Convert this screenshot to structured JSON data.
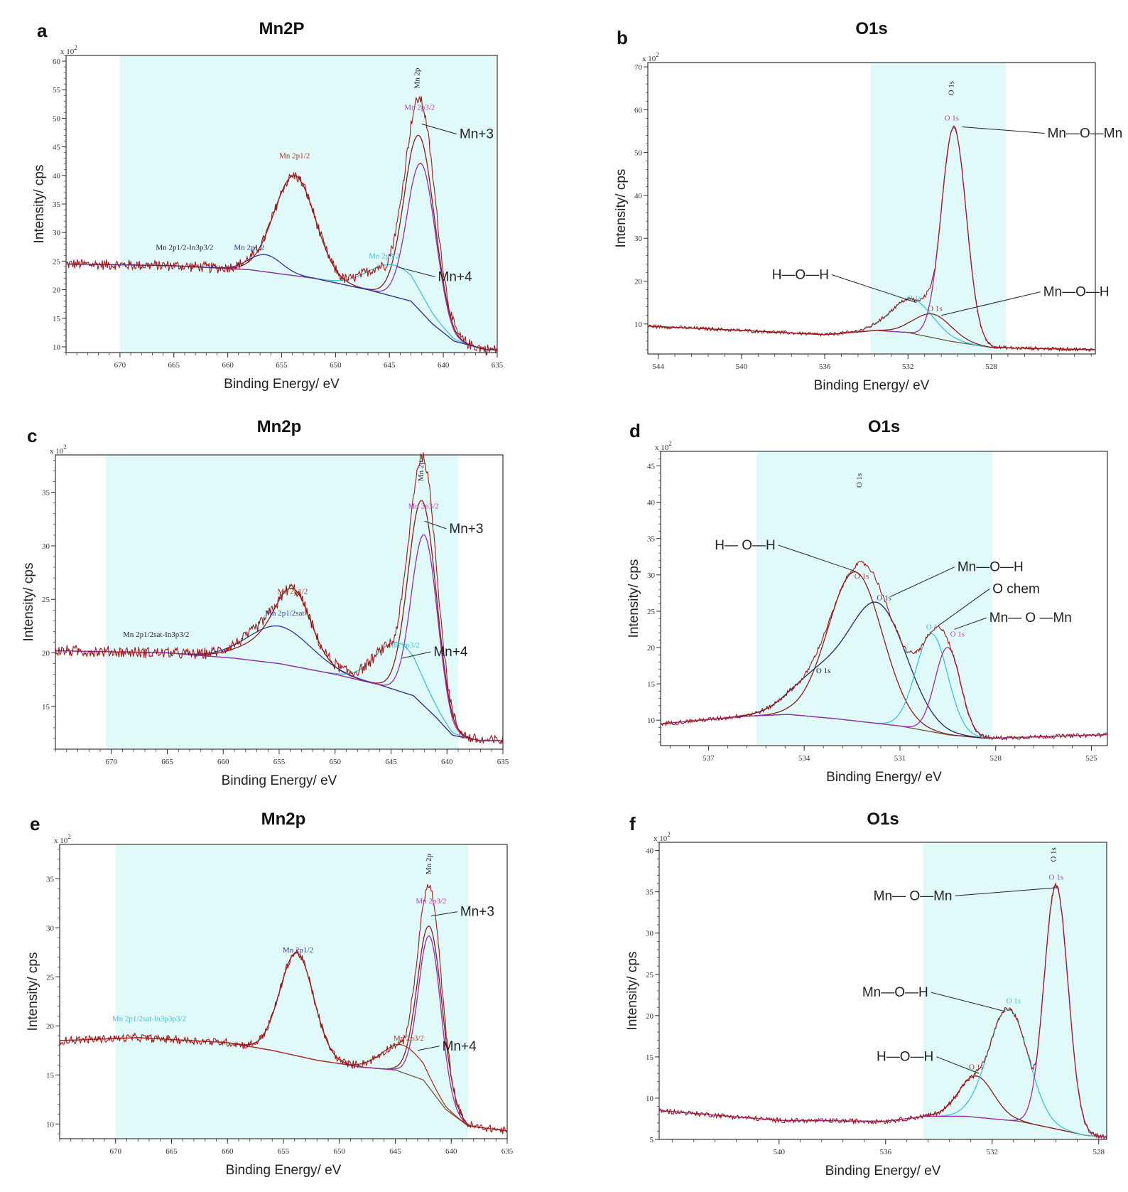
{
  "chart_data": [
    {
      "type": "line",
      "panel_letter": "a",
      "title": "Mn2P",
      "xlabel": "Binding Energy/ eV",
      "ylabel": "Intensity/ cps",
      "y_multiplier": "x 10",
      "y_multiplier_exp": "2",
      "xlim": [
        675,
        635
      ],
      "ylim": [
        9,
        61
      ],
      "xticks": [
        670,
        665,
        660,
        655,
        650,
        645,
        640,
        635
      ],
      "yticks": [
        10,
        15,
        20,
        25,
        30,
        35,
        40,
        45,
        50,
        55,
        60
      ],
      "xtick_labels": [
        "670",
        "665",
        "660",
        "655",
        "650",
        "645",
        "640",
        "635"
      ],
      "ytick_labels": [
        "10",
        "15",
        "20",
        "25",
        "30",
        "35",
        "40",
        "45",
        "50",
        "55",
        "60"
      ],
      "shaded_range": [
        670,
        635.2
      ],
      "background": [
        [
          675,
          24.5
        ],
        [
          665,
          24.2
        ],
        [
          658,
          23.5
        ],
        [
          652,
          22
        ],
        [
          647,
          20
        ],
        [
          643,
          18
        ],
        [
          641,
          14
        ],
        [
          639,
          11
        ],
        [
          636,
          9.5
        ],
        [
          635,
          9.5
        ]
      ],
      "components": [
        {
          "color": "#8b1a1a",
          "peaks": [
            [
              653.8,
              17.5,
              1.9
            ],
            [
              642.2,
              30.5,
              1.4
            ]
          ]
        },
        {
          "color": "#40c0d0",
          "peaks": [
            [
              644.5,
              5.5,
              2.4
            ]
          ]
        },
        {
          "color": "#9c27b0",
          "peaks": [
            [
              642.0,
              26,
              1.3
            ]
          ]
        },
        {
          "color": "#333399",
          "peaks": [
            [
              656.5,
              3,
              1.5
            ]
          ]
        }
      ],
      "noise": 0.8,
      "peak_labels": [
        {
          "text": "Mn 2p",
          "x": 642.2,
          "y": 57,
          "color": "#222222",
          "rotate": true
        },
        {
          "text": "Mn 2p3/2",
          "x": 642.2,
          "y": 51.5,
          "color": "#b040b0"
        },
        {
          "text": "Mn 2p1/2",
          "x": 653.8,
          "y": 43,
          "color": "#b03020"
        },
        {
          "text": "Mn 2p1/2-In3p3/2",
          "x": 664,
          "y": 27,
          "color": "#222222"
        },
        {
          "text": "Mn 2p1/2",
          "x": 658,
          "y": 27,
          "color": "#333399"
        },
        {
          "text": "Mn 2p3/2",
          "x": 645.5,
          "y": 25.5,
          "color": "#40c0d0"
        }
      ],
      "annotations": [
        {
          "text": "Mn+3",
          "tx": 638.5,
          "ty": 46.5,
          "lx": 642,
          "ly": 49
        },
        {
          "text": "Mn+4",
          "tx": 640.5,
          "ty": 21.5,
          "lx": 644.3,
          "ly": 24
        }
      ]
    },
    {
      "type": "line",
      "panel_letter": "b",
      "title": "O1s",
      "xlabel": "Binding Energy/ eV",
      "ylabel": "Intensity/ cps",
      "y_multiplier": "x 10",
      "y_multiplier_exp": "2",
      "xlim": [
        544.5,
        523
      ],
      "ylim": [
        3,
        71
      ],
      "xticks": [
        544,
        540,
        536,
        532,
        528
      ],
      "yticks": [
        10,
        20,
        30,
        40,
        50,
        60,
        70
      ],
      "xtick_labels": [
        "544",
        "540",
        "536",
        "532",
        "528"
      ],
      "ytick_labels": [
        "10",
        "20",
        "30",
        "40",
        "50",
        "60",
        "70"
      ],
      "shaded_range": [
        533.8,
        527.3
      ],
      "background": [
        [
          544.5,
          9.5
        ],
        [
          540,
          8.5
        ],
        [
          536,
          7.5
        ],
        [
          533.5,
          8.5
        ],
        [
          532,
          8
        ],
        [
          530,
          6
        ],
        [
          528,
          4.5
        ],
        [
          523,
          4
        ]
      ],
      "components": [
        {
          "color": "#9c27b0",
          "peaks": [
            [
              529.8,
              50,
              0.6
            ]
          ]
        },
        {
          "color": "#40c0d0",
          "peaks": [
            [
              531.8,
              8,
              1.0
            ]
          ]
        },
        {
          "color": "#8b1a1a",
          "peaks": [
            [
              530.8,
              5.5,
              0.9
            ]
          ]
        }
      ],
      "noise": 0.35,
      "peak_labels": [
        {
          "text": "O 1s",
          "x": 529.8,
          "y": 65,
          "color": "#222222",
          "rotate": true
        },
        {
          "text": "O 1s",
          "x": 529.9,
          "y": 57.5,
          "color": "#b040b0"
        },
        {
          "text": "O 1s",
          "x": 531.7,
          "y": 15.5,
          "color": "#40c0d0"
        },
        {
          "text": "O 1s",
          "x": 530.7,
          "y": 13,
          "color": "#b03020"
        }
      ],
      "annotations": [
        {
          "text": "Mn—O—Mn",
          "tx": 525.3,
          "ty": 53.5,
          "lx": 529.4,
          "ly": 56
        },
        {
          "text": "H—O—H",
          "tx": 535.8,
          "ty": 20.5,
          "lx": 531.6,
          "ly": 15
        },
        {
          "text": "Mn—O—H",
          "tx": 525.5,
          "ty": 16.5,
          "lx": 530.4,
          "ly": 12
        }
      ]
    },
    {
      "type": "line",
      "panel_letter": "c",
      "title": "Mn2p",
      "xlabel": "Binding Energy/ eV",
      "ylabel": "Intensity/ cps",
      "y_multiplier": "x 10",
      "y_multiplier_exp": "2",
      "xlim": [
        675,
        635
      ],
      "ylim": [
        11,
        38.5
      ],
      "xticks": [
        670,
        665,
        660,
        655,
        650,
        645,
        640,
        635
      ],
      "yticks": [
        15,
        20,
        25,
        30,
        35
      ],
      "xtick_labels": [
        "670",
        "665",
        "660",
        "655",
        "650",
        "645",
        "640",
        "635"
      ],
      "ytick_labels": [
        "15",
        "20",
        "25",
        "30",
        "35"
      ],
      "shaded_range": [
        670.5,
        639
      ],
      "background": [
        [
          675,
          20.2
        ],
        [
          665,
          20
        ],
        [
          659,
          19.5
        ],
        [
          655,
          19
        ],
        [
          650,
          18
        ],
        [
          646,
          17
        ],
        [
          643,
          16
        ],
        [
          641,
          14
        ],
        [
          639.5,
          12.3
        ],
        [
          637,
          11.8
        ],
        [
          635,
          11.8
        ]
      ],
      "components": [
        {
          "color": "#8b1a1a",
          "peaks": [
            [
              655,
              2.5,
              2.8
            ],
            [
              653.7,
              5.0,
              1.5
            ],
            [
              642.2,
              19.0,
              1.25
            ]
          ]
        },
        {
          "color": "#333399",
          "peaks": [
            [
              655,
              3.5,
              2.8
            ]
          ]
        },
        {
          "color": "#40c0d0",
          "peaks": [
            [
              644.3,
              4.5,
              2.0
            ]
          ]
        },
        {
          "color": "#9c27b0",
          "peaks": [
            [
              642.0,
              16,
              1.15
            ]
          ]
        }
      ],
      "noise": 0.45,
      "peak_labels": [
        {
          "text": "Mn 2p",
          "x": 642.1,
          "y": 37,
          "color": "#222222",
          "rotate": true
        },
        {
          "text": "Mn 2p3/2",
          "x": 642.1,
          "y": 33.5,
          "color": "#b040b0"
        },
        {
          "text": "Mn 2p1/2",
          "x": 653.8,
          "y": 25.5,
          "color": "#b03020"
        },
        {
          "text": "Mn 2p1/2sat",
          "x": 654.5,
          "y": 23.5,
          "color": "#333399"
        },
        {
          "text": "Mn 2p1/2sat-In3p3/2",
          "x": 666,
          "y": 21.5,
          "color": "#222222"
        },
        {
          "text": "Mn 2p3/2",
          "x": 643.8,
          "y": 20.5,
          "color": "#40c0d0"
        }
      ],
      "annotations": [
        {
          "text": "Mn+3",
          "tx": 639.8,
          "ty": 31.2,
          "lx": 642,
          "ly": 32.3
        },
        {
          "text": "Mn+4",
          "tx": 641.2,
          "ty": 19.7,
          "lx": 644,
          "ly": 19.5
        }
      ]
    },
    {
      "type": "line",
      "panel_letter": "d",
      "title": "O1s",
      "xlabel": "Binding Energy/ eV",
      "ylabel": "Intensity/ cps",
      "y_multiplier": "x 10",
      "y_multiplier_exp": "2",
      "xlim": [
        538.5,
        524.5
      ],
      "ylim": [
        6.5,
        47
      ],
      "xticks": [
        537,
        534,
        531,
        528,
        525
      ],
      "yticks": [
        10,
        15,
        20,
        25,
        30,
        35,
        40,
        45
      ],
      "xtick_labels": [
        "537",
        "534",
        "531",
        "528",
        "525"
      ],
      "ytick_labels": [
        "10",
        "15",
        "20",
        "25",
        "30",
        "35",
        "40",
        "45"
      ],
      "shaded_range": [
        535.5,
        528.1
      ],
      "background": [
        [
          538.5,
          9.5
        ],
        [
          536,
          10.5
        ],
        [
          534.5,
          10.8
        ],
        [
          533,
          10.2
        ],
        [
          531,
          9.2
        ],
        [
          529.5,
          8
        ],
        [
          528.3,
          7.5
        ],
        [
          524.5,
          8
        ]
      ],
      "components": [
        {
          "color": "#8b1a1a",
          "peaks": [
            [
              532.4,
              20.5,
              0.85
            ]
          ]
        },
        {
          "color": "#222266",
          "peaks": [
            [
              531.7,
              16.2,
              0.9
            ],
            [
              533.6,
              5.2,
              0.85
            ]
          ]
        },
        {
          "color": "#40c0d0",
          "peaks": [
            [
              530,
              13.5,
              0.5
            ]
          ]
        },
        {
          "color": "#9c27b0",
          "peaks": [
            [
              529.5,
              12,
              0.4
            ]
          ]
        }
      ],
      "noise": 0.25,
      "peak_labels": [
        {
          "text": "O 1s",
          "x": 532.2,
          "y": 43,
          "color": "#222222",
          "rotate": true
        },
        {
          "text": "O 1s",
          "x": 532.2,
          "y": 29.5,
          "color": "#b03020"
        },
        {
          "text": "O 1s",
          "x": 531.5,
          "y": 26.5,
          "color": "#333399"
        },
        {
          "text": "O 1s",
          "x": 533.4,
          "y": 16.5,
          "color": "#222222"
        },
        {
          "text": "O 1",
          "x": 530,
          "y": 22.5,
          "color": "#40c0d0"
        },
        {
          "text": "O 1s",
          "x": 529.2,
          "y": 21.5,
          "color": "#b040b0"
        }
      ],
      "annotations": [
        {
          "text": "H— O—H",
          "tx": 534.9,
          "ty": 33.5,
          "lx": 532.4,
          "ly": 30.5
        },
        {
          "text": "Mn—O—H",
          "tx": 529.2,
          "ty": 30.5,
          "lx": 531.3,
          "ly": 27
        },
        {
          "text": "O chem",
          "tx": 528.1,
          "ty": 27.5,
          "lx": 529.8,
          "ly": 23
        },
        {
          "text": "Mn— O —Mn",
          "tx": 528.2,
          "ty": 23.5,
          "lx": 529.3,
          "ly": 22.5
        }
      ]
    },
    {
      "type": "line",
      "panel_letter": "e",
      "title": "Mn2p",
      "xlabel": "Binding Energy/ eV",
      "ylabel": "Intensity/ cps",
      "y_multiplier": "x 10",
      "y_multiplier_exp": "2",
      "xlim": [
        675,
        635
      ],
      "ylim": [
        8.5,
        38.5
      ],
      "xticks": [
        670,
        665,
        660,
        655,
        650,
        645,
        640,
        635
      ],
      "yticks": [
        10,
        15,
        20,
        25,
        30,
        35
      ],
      "xtick_labels": [
        "670",
        "665",
        "660",
        "655",
        "650",
        "645",
        "640",
        "635"
      ],
      "ytick_labels": [
        "10",
        "15",
        "20",
        "25",
        "30",
        "35"
      ],
      "shaded_range": [
        670,
        638.5
      ],
      "background": [
        [
          675,
          18.5
        ],
        [
          668,
          18.8
        ],
        [
          660,
          18.3
        ],
        [
          656,
          17.5
        ],
        [
          652,
          16.5
        ],
        [
          648,
          15.8
        ],
        [
          645,
          15.5
        ],
        [
          642.5,
          14.5
        ],
        [
          640.5,
          11.5
        ],
        [
          638.5,
          9.8
        ],
        [
          635,
          9.3
        ]
      ],
      "components": [
        {
          "color": "#8b1a1a",
          "peaks": [
            [
              653.8,
              10.5,
              1.5
            ],
            [
              641.9,
              16.5,
              1.1
            ]
          ]
        },
        {
          "color": "#9c27b0",
          "peaks": [
            [
              641.9,
              15.5,
              1.0
            ]
          ]
        },
        {
          "color": "#b03020",
          "peaks": [
            [
              644.3,
              2.8,
              1.8
            ]
          ]
        }
      ],
      "noise": 0.35,
      "peak_labels": [
        {
          "text": "Mn 2p",
          "x": 641.8,
          "y": 36.5,
          "color": "#222222",
          "rotate": true
        },
        {
          "text": "Mn 2p3/2",
          "x": 641.8,
          "y": 32.5,
          "color": "#b040b0"
        },
        {
          "text": "Mn 2p1/2",
          "x": 653.7,
          "y": 27.5,
          "color": "#333399"
        },
        {
          "text": "Mn 2p1/2sat-In3p3p3/2",
          "x": 667,
          "y": 20.5,
          "color": "#40c0d0"
        },
        {
          "text": "Mn 2p3/2",
          "x": 643.8,
          "y": 18.5,
          "color": "#b03020"
        }
      ],
      "annotations": [
        {
          "text": "Mn+3",
          "tx": 639.2,
          "ty": 31.2,
          "lx": 641.8,
          "ly": 31.2
        },
        {
          "text": "Mn+4",
          "tx": 640.8,
          "ty": 17.5,
          "lx": 643,
          "ly": 17.5
        }
      ]
    },
    {
      "type": "line",
      "panel_letter": "f",
      "title": "O1s",
      "xlabel": "Binding Energy/ eV",
      "ylabel": "Intensity/ cps",
      "y_multiplier": "x 10",
      "y_multiplier_exp": "2",
      "xlim": [
        544.5,
        527.7
      ],
      "ylim": [
        5,
        41
      ],
      "xticks": [
        540,
        536,
        532,
        528
      ],
      "yticks": [
        5,
        10,
        15,
        20,
        25,
        30,
        35,
        40
      ],
      "xtick_labels": [
        "540",
        "536",
        "532",
        "528"
      ],
      "ytick_labels": [
        "5",
        "10",
        "15",
        "20",
        "25",
        "30",
        "35",
        "40"
      ],
      "shaded_range": [
        534.6,
        527.7
      ],
      "background": [
        [
          544.5,
          8.5
        ],
        [
          540,
          7.3
        ],
        [
          536,
          7.2
        ],
        [
          534.5,
          7.8
        ],
        [
          533,
          7.8
        ],
        [
          531,
          7.2
        ],
        [
          529.5,
          6.2
        ],
        [
          528.5,
          5.5
        ],
        [
          527.7,
          5.3
        ]
      ],
      "components": [
        {
          "color": "#8b1a1a",
          "peaks": [
            [
              532.6,
              5.0,
              0.65
            ]
          ]
        },
        {
          "color": "#40c0d0",
          "peaks": [
            [
              531.4,
              13.5,
              0.75
            ]
          ]
        },
        {
          "color": "#9c27b0",
          "peaks": [
            [
              529.6,
              29.5,
              0.45
            ]
          ]
        }
      ],
      "noise": 0.25,
      "peak_labels": [
        {
          "text": "O 1s",
          "x": 529.6,
          "y": 39.5,
          "color": "#222222",
          "rotate": true
        },
        {
          "text": "O 1s",
          "x": 529.6,
          "y": 36.5,
          "color": "#b040b0"
        },
        {
          "text": "O 1s",
          "x": 531.2,
          "y": 21.5,
          "color": "#40c0d0"
        },
        {
          "text": "O 1s",
          "x": 532.6,
          "y": 13.5,
          "color": "#b03020"
        }
      ],
      "annotations": [
        {
          "text": "Mn— O—Mn",
          "tx": 533.5,
          "ty": 34.0,
          "lx": 529.6,
          "ly": 35.5
        },
        {
          "text": "Mn—O—H",
          "tx": 534.4,
          "ty": 22.3,
          "lx": 531.5,
          "ly": 20.5
        },
        {
          "text": "H—O—H",
          "tx": 534.2,
          "ty": 14.5,
          "lx": 532.5,
          "ly": 13
        }
      ]
    }
  ]
}
